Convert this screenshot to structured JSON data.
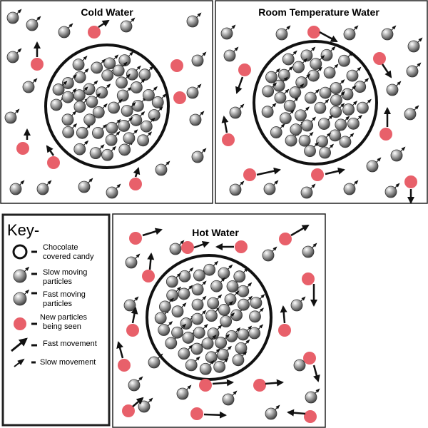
{
  "panels": {
    "cold": {
      "title": "Cold Water"
    },
    "room": {
      "title": "Room Temperature Water"
    },
    "hot": {
      "title": "Hot Water"
    }
  },
  "key": {
    "title": "Key-",
    "items": [
      {
        "icon": "candy-outline-circle-icon",
        "line1": "Chocolate",
        "line2": "covered candy"
      },
      {
        "icon": "slow-particle-icon",
        "line1": "Slow moving",
        "line2": "particles"
      },
      {
        "icon": "fast-particle-icon",
        "line1": "Fast moving",
        "line2": "particles"
      },
      {
        "icon": "new-particle-icon",
        "line1": "New particles",
        "line2": "being seen"
      },
      {
        "icon": "fast-arrow-icon",
        "line1": "Fast movement",
        "line2": ""
      },
      {
        "icon": "slow-arrow-icon",
        "line1": "Slow movement",
        "line2": ""
      }
    ]
  },
  "colors": {
    "particle": "#8a8a8a",
    "new_particle": "#e8606a",
    "outline": "#111111"
  }
}
